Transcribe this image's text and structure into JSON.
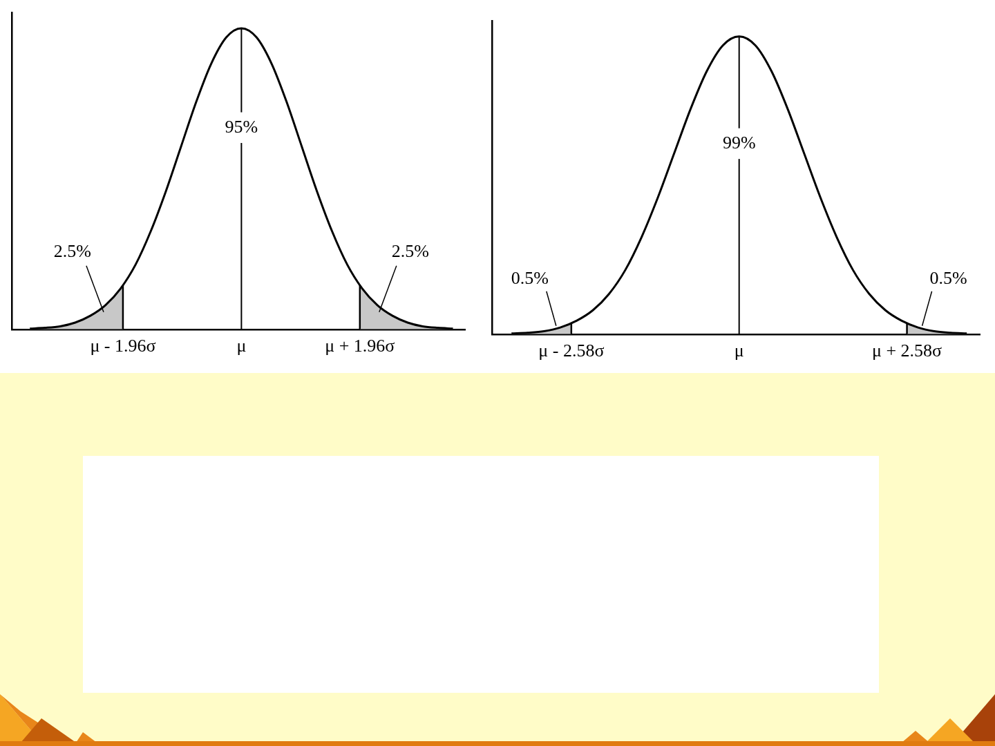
{
  "chart_data": [
    {
      "type": "line",
      "x": [
        -3.5,
        -3.25,
        -3.0,
        -2.75,
        -2.5,
        -2.25,
        -2.0,
        -1.75,
        -1.5,
        -1.25,
        -1.0,
        -0.75,
        -0.5,
        -0.25,
        0,
        0.25,
        0.5,
        0.75,
        1.0,
        1.25,
        1.5,
        1.75,
        2.0,
        2.25,
        2.5,
        2.75,
        3.0,
        3.25,
        3.5
      ],
      "values": [
        0.001,
        0.002,
        0.004,
        0.009,
        0.018,
        0.032,
        0.054,
        0.086,
        0.13,
        0.183,
        0.242,
        0.301,
        0.352,
        0.387,
        0.399,
        0.387,
        0.352,
        0.301,
        0.242,
        0.183,
        0.13,
        0.086,
        0.054,
        0.032,
        0.018,
        0.009,
        0.004,
        0.002,
        0.001
      ],
      "xlim": [
        -3.8,
        3.7
      ],
      "ylim": [
        0,
        0.42
      ],
      "xticks": [
        {
          "value": -1.96,
          "label": "μ - 1.96σ"
        },
        {
          "value": 0,
          "label": "μ"
        },
        {
          "value": 1.96,
          "label": "μ + 1.96σ"
        }
      ],
      "tick_labels": "x",
      "grid": false,
      "color": "#000000",
      "center_label": "95%",
      "tail_labels": [
        "2.5%",
        "2.5%"
      ]
    },
    {
      "type": "line",
      "x": [
        -3.5,
        -3.25,
        -3.0,
        -2.75,
        -2.5,
        -2.25,
        -2.0,
        -1.75,
        -1.5,
        -1.25,
        -1.0,
        -0.75,
        -0.5,
        -0.25,
        0,
        0.25,
        0.5,
        0.75,
        1.0,
        1.25,
        1.5,
        1.75,
        2.0,
        2.25,
        2.5,
        2.75,
        3.0,
        3.25,
        3.5
      ],
      "values": [
        0.001,
        0.002,
        0.004,
        0.009,
        0.018,
        0.032,
        0.054,
        0.086,
        0.13,
        0.183,
        0.242,
        0.301,
        0.352,
        0.387,
        0.399,
        0.387,
        0.352,
        0.301,
        0.242,
        0.183,
        0.13,
        0.086,
        0.054,
        0.032,
        0.018,
        0.009,
        0.004,
        0.002,
        0.001
      ],
      "xlim": [
        -3.8,
        3.7
      ],
      "ylim": [
        0,
        0.42
      ],
      "xticks": [
        {
          "value": -2.58,
          "label": "μ - 2.58σ"
        },
        {
          "value": 0,
          "label": "μ"
        },
        {
          "value": 2.58,
          "label": "μ + 2.58σ"
        }
      ],
      "tick_labels": "x",
      "grid": false,
      "color": "#000000",
      "center_label": "99%",
      "tail_labels": [
        "0.5%",
        "0.5%"
      ]
    }
  ]
}
